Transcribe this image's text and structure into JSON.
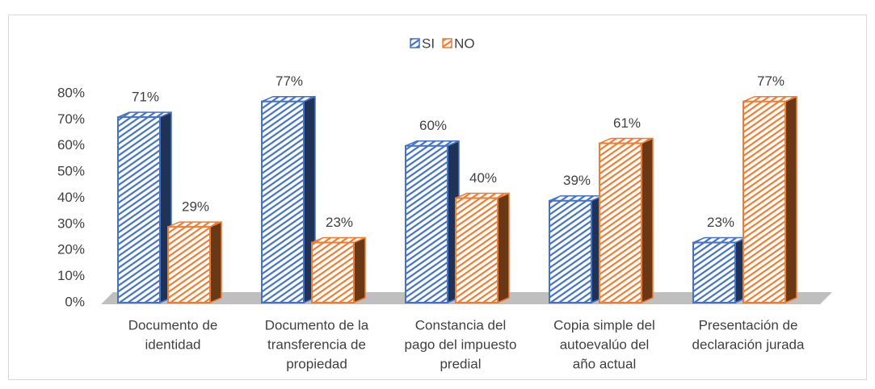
{
  "chart_data": {
    "type": "bar3d",
    "categories": [
      [
        "Documento de",
        "identidad"
      ],
      [
        "Documento de la",
        "transferencia de",
        "propiedad"
      ],
      [
        "Constancia del",
        "pago del impuesto",
        "predial"
      ],
      [
        "Copia simple del",
        "autoevalúo del",
        "año actual"
      ],
      [
        "Presentación de",
        "declaración jurada"
      ]
    ],
    "series": [
      {
        "name": "SI",
        "color": "#4472c4",
        "values": [
          71,
          77,
          60,
          39,
          23
        ],
        "value_labels": [
          "71%",
          "77%",
          "60%",
          "39%",
          "23%"
        ]
      },
      {
        "name": "NO",
        "color": "#ed7d31",
        "values": [
          29,
          23,
          40,
          61,
          77
        ],
        "value_labels": [
          "29%",
          "23%",
          "40%",
          "61%",
          "77%"
        ]
      }
    ],
    "ylim": [
      0,
      80
    ],
    "yticks": [
      {
        "value": 0,
        "label": "0%"
      },
      {
        "value": 10,
        "label": "10%"
      },
      {
        "value": 20,
        "label": "20%"
      },
      {
        "value": 30,
        "label": "30%"
      },
      {
        "value": 40,
        "label": "40%"
      },
      {
        "value": 50,
        "label": "50%"
      },
      {
        "value": 60,
        "label": "60%"
      },
      {
        "value": 70,
        "label": "70%"
      },
      {
        "value": 80,
        "label": "80%"
      }
    ],
    "legend": "top",
    "hatch": true
  }
}
